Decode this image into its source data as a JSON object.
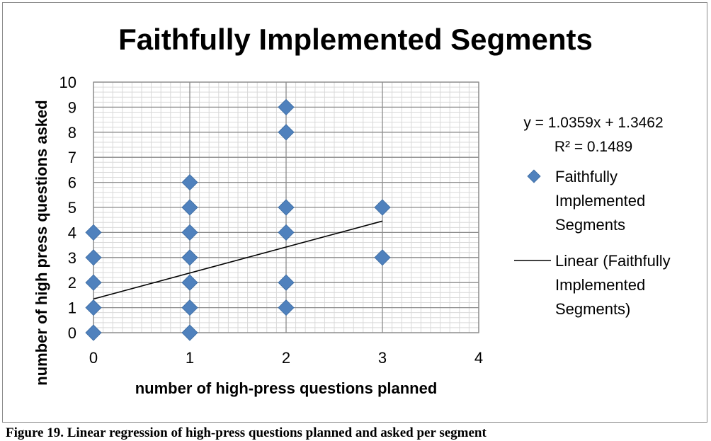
{
  "chart_data": {
    "type": "scatter",
    "title": "Faithfully Implemented Segments",
    "xlabel": "number of high-press questions planned",
    "ylabel": "number of high press questions asked",
    "xlim": [
      0,
      4
    ],
    "ylim": [
      0,
      10
    ],
    "x_ticks": [
      "0",
      "1",
      "2",
      "3",
      "4"
    ],
    "y_ticks": [
      "0",
      "1",
      "2",
      "3",
      "4",
      "5",
      "6",
      "7",
      "8",
      "9",
      "10"
    ],
    "grid": true,
    "legend_position": "right",
    "series": [
      {
        "name": "Faithfully Implemented Segments",
        "color": "#4f81bd",
        "marker": "diamond",
        "points": [
          [
            0,
            0
          ],
          [
            0,
            1
          ],
          [
            0,
            2
          ],
          [
            0,
            3
          ],
          [
            0,
            4
          ],
          [
            1,
            0
          ],
          [
            1,
            1
          ],
          [
            1,
            2
          ],
          [
            1,
            3
          ],
          [
            1,
            4
          ],
          [
            1,
            5
          ],
          [
            1,
            6
          ],
          [
            2,
            1
          ],
          [
            2,
            2
          ],
          [
            2,
            4
          ],
          [
            2,
            5
          ],
          [
            2,
            8
          ],
          [
            2,
            9
          ],
          [
            3,
            3
          ],
          [
            3,
            5
          ]
        ]
      }
    ],
    "trendline": {
      "name": "Linear (Faithfully Implemented Segments)",
      "slope": 1.0359,
      "intercept": 1.3462,
      "x_range": [
        0,
        3
      ],
      "color": "#000000",
      "equation": "y = 1.0359x + 1.3462",
      "r_squared": "R² = 0.1489"
    },
    "legend": {
      "series_label_lines": [
        "Faithfully",
        "Implemented",
        "Segments"
      ],
      "trend_label_lines": [
        "Linear (Faithfully",
        "Implemented",
        "Segments)"
      ]
    }
  },
  "caption": "Figure 19. Linear regression of high-press questions planned and asked per segment"
}
